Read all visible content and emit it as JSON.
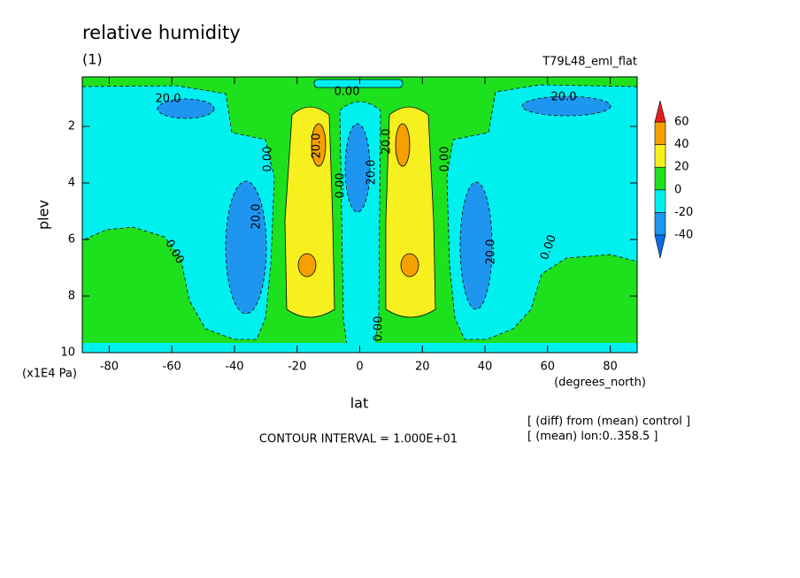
{
  "chart_data": {
    "type": "contour",
    "title": "relative humidity",
    "subtitle": "(1)",
    "run_label": "T79L48_eml_flat",
    "xlabel": "lat",
    "ylabel": "plev",
    "x_unit": "(degrees_north)",
    "y_unit": "(x1E4 Pa)",
    "xlim": [
      -88.6,
      88.6
    ],
    "xticks": [
      -80,
      -60,
      -40,
      -20,
      0,
      20,
      40,
      60,
      80
    ],
    "ylim": [
      10,
      0.25
    ],
    "yticks": [
      2,
      4,
      6,
      8,
      10
    ],
    "colorbar": {
      "levels": [
        -40,
        -20,
        0,
        20,
        40,
        60
      ],
      "colors": [
        "#0a6ee6",
        "#1e96f0",
        "#00f0f0",
        "#1ee11e",
        "#f5f01e",
        "#f5a000",
        "#e61e1e"
      ]
    },
    "contour_labels": [
      "20.0",
      "0.00",
      "20.0",
      "0.00",
      "20.0",
      "0.00",
      "20.0",
      "20.0",
      "0.00",
      "20.0",
      "0.00",
      "20.0",
      "0.00",
      "0.00"
    ],
    "contour_interval": "CONTOUR INTERVAL = 1.000E+01",
    "notes": [
      "[ (diff) from (mean) control ]",
      "[ (mean) lon:0..358.5 ]"
    ]
  }
}
